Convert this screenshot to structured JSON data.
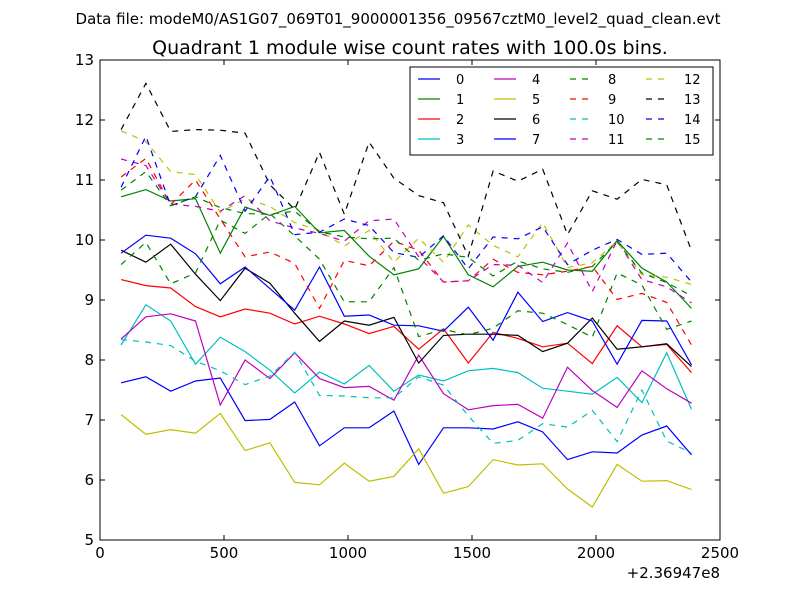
{
  "chart_data": {
    "type": "line",
    "suptitle": "Data file: modeM0/AS1G07_069T01_9000001356_09567cztM0_level2_quad_clean.evt",
    "title": "Quadrant 1 module wise count rates with 100.0s bins.",
    "xlabel": "",
    "ylabel": "",
    "x_offset_label": "+2.36947e8",
    "xlim": [
      0,
      2500
    ],
    "ylim": [
      5,
      13
    ],
    "xticks": [
      0,
      500,
      1000,
      1500,
      2000,
      2500
    ],
    "yticks": [
      5,
      6,
      7,
      8,
      9,
      10,
      11,
      12,
      13
    ],
    "xtick_labels": [
      "0",
      "500",
      "1000",
      "1500",
      "2000",
      "2500"
    ],
    "ytick_labels": [
      "5",
      "6",
      "7",
      "8",
      "9",
      "10",
      "11",
      "12",
      "13"
    ],
    "grid": false,
    "legend_position": "upper-right",
    "x": [
      85,
      185,
      285,
      385,
      485,
      585,
      685,
      785,
      885,
      985,
      1085,
      1185,
      1285,
      1385,
      1485,
      1585,
      1685,
      1785,
      1885,
      1985,
      2085,
      2185,
      2285,
      2385
    ],
    "series": [
      {
        "name": "0",
        "color": "#0000ff",
        "dash": "solid",
        "values": [
          7.62,
          7.72,
          7.48,
          7.65,
          7.7,
          6.99,
          7.01,
          7.3,
          6.57,
          6.87,
          6.87,
          7.15,
          6.26,
          6.87,
          6.87,
          6.85,
          6.97,
          6.8,
          6.34,
          6.47,
          6.45,
          6.75,
          6.9,
          6.42
        ]
      },
      {
        "name": "1",
        "color": "#008000",
        "dash": "solid",
        "values": [
          10.72,
          10.84,
          10.65,
          10.69,
          9.78,
          10.55,
          10.41,
          10.56,
          10.12,
          10.16,
          9.73,
          9.42,
          9.52,
          10.06,
          9.42,
          9.22,
          9.56,
          9.63,
          9.5,
          9.48,
          9.99,
          9.53,
          9.3,
          8.86
        ]
      },
      {
        "name": "2",
        "color": "#ff0000",
        "dash": "solid",
        "values": [
          9.34,
          9.24,
          9.2,
          8.89,
          8.72,
          8.85,
          8.78,
          8.6,
          8.73,
          8.6,
          8.44,
          8.56,
          8.18,
          8.52,
          7.95,
          8.46,
          8.36,
          8.22,
          8.28,
          7.94,
          8.57,
          8.22,
          8.26,
          7.79
        ]
      },
      {
        "name": "3",
        "color": "#00bfbf",
        "dash": "solid",
        "values": [
          8.25,
          8.92,
          8.65,
          7.93,
          8.38,
          8.14,
          7.83,
          7.45,
          7.8,
          7.6,
          7.91,
          7.48,
          7.75,
          7.65,
          7.82,
          7.86,
          7.79,
          7.53,
          7.48,
          7.43,
          7.71,
          7.29,
          8.12,
          7.18
        ]
      },
      {
        "name": "4",
        "color": "#bf00bf",
        "dash": "solid",
        "values": [
          8.35,
          8.72,
          8.77,
          8.65,
          7.25,
          8.0,
          7.69,
          8.12,
          7.69,
          7.54,
          7.56,
          7.33,
          8.08,
          7.44,
          7.17,
          7.24,
          7.26,
          7.03,
          7.88,
          7.49,
          7.21,
          7.82,
          7.52,
          7.28
        ]
      },
      {
        "name": "5",
        "color": "#bfbf00",
        "dash": "solid",
        "values": [
          7.09,
          6.76,
          6.84,
          6.78,
          7.11,
          6.49,
          6.62,
          5.96,
          5.92,
          6.28,
          5.98,
          6.06,
          6.52,
          5.78,
          5.89,
          6.34,
          6.25,
          6.27,
          5.85,
          5.55,
          6.26,
          5.98,
          5.99,
          5.84
        ]
      },
      {
        "name": "6",
        "color": "#000000",
        "dash": "solid",
        "values": [
          9.83,
          9.63,
          9.93,
          9.43,
          8.99,
          9.53,
          9.28,
          8.78,
          8.31,
          8.65,
          8.58,
          8.71,
          7.95,
          8.41,
          8.43,
          8.43,
          8.41,
          8.14,
          8.28,
          8.7,
          8.18,
          8.22,
          8.27,
          7.89
        ]
      },
      {
        "name": "7",
        "color": "#0000ff",
        "dash": "solid",
        "values": [
          9.78,
          10.08,
          10.03,
          9.77,
          9.27,
          9.55,
          9.19,
          8.83,
          9.55,
          8.73,
          8.75,
          8.58,
          8.57,
          8.48,
          8.88,
          8.33,
          9.13,
          8.64,
          8.79,
          8.65,
          7.93,
          8.66,
          8.65,
          7.92
        ]
      },
      {
        "name": "8",
        "color": "#008000",
        "dash": "dashed",
        "values": [
          9.59,
          9.96,
          9.27,
          9.45,
          10.33,
          10.11,
          10.44,
          10.07,
          9.68,
          8.97,
          8.97,
          9.54,
          8.39,
          8.51,
          8.42,
          8.53,
          8.82,
          8.78,
          8.59,
          8.38,
          9.45,
          9.25,
          8.51,
          8.65
        ]
      },
      {
        "name": "9",
        "color": "#ff0000",
        "dash": "dashed",
        "values": [
          11.05,
          11.36,
          10.59,
          11.0,
          10.35,
          9.72,
          9.8,
          9.61,
          8.86,
          9.66,
          9.57,
          9.98,
          9.83,
          9.3,
          9.32,
          9.68,
          9.46,
          9.42,
          9.48,
          9.56,
          9.01,
          9.11,
          8.96,
          8.25
        ]
      },
      {
        "name": "10",
        "color": "#00bfbf",
        "dash": "dashed",
        "values": [
          8.34,
          8.3,
          8.24,
          7.98,
          7.82,
          7.59,
          7.73,
          8.13,
          7.41,
          7.4,
          7.37,
          7.37,
          7.72,
          7.58,
          7.07,
          6.61,
          6.66,
          6.94,
          6.88,
          7.16,
          6.64,
          7.5,
          6.65,
          6.45
        ]
      },
      {
        "name": "11",
        "color": "#bf00bf",
        "dash": "dashed",
        "values": [
          11.35,
          11.24,
          10.6,
          10.56,
          10.48,
          10.74,
          10.32,
          10.2,
          10.11,
          9.98,
          10.32,
          10.35,
          9.72,
          9.3,
          9.32,
          9.59,
          9.58,
          9.29,
          9.95,
          9.14,
          9.99,
          9.34,
          9.22,
          8.95
        ]
      },
      {
        "name": "12",
        "color": "#bfbf00",
        "dash": "dashed",
        "values": [
          11.82,
          11.64,
          11.14,
          11.09,
          10.46,
          10.69,
          10.56,
          10.29,
          10.16,
          9.9,
          10.16,
          9.63,
          10.03,
          9.63,
          10.25,
          9.91,
          9.72,
          10.29,
          9.54,
          9.62,
          9.98,
          9.42,
          9.38,
          9.26
        ]
      },
      {
        "name": "13",
        "color": "#000000",
        "dash": "dashed",
        "values": [
          11.84,
          12.61,
          11.81,
          11.84,
          11.83,
          11.78,
          10.92,
          10.51,
          11.46,
          10.43,
          11.63,
          11.03,
          10.74,
          10.62,
          9.73,
          11.15,
          10.98,
          11.18,
          10.09,
          10.82,
          10.68,
          11.01,
          10.92,
          9.82
        ]
      },
      {
        "name": "14",
        "color": "#0000ff",
        "dash": "dashed",
        "values": [
          10.88,
          11.73,
          10.57,
          10.72,
          11.41,
          10.48,
          11.06,
          10.09,
          10.13,
          10.35,
          10.24,
          9.79,
          9.71,
          10.07,
          9.52,
          10.05,
          10.02,
          10.22,
          9.59,
          9.83,
          10.01,
          9.76,
          9.78,
          9.3
        ]
      },
      {
        "name": "15",
        "color": "#008000",
        "dash": "dashed",
        "values": [
          10.83,
          11.14,
          10.57,
          10.72,
          10.54,
          10.44,
          10.43,
          10.48,
          10.14,
          10.05,
          10.02,
          10.03,
          9.66,
          9.77,
          9.71,
          9.4,
          9.65,
          9.52,
          9.46,
          9.56,
          9.97,
          9.45,
          9.29,
          9.07
        ]
      }
    ]
  }
}
